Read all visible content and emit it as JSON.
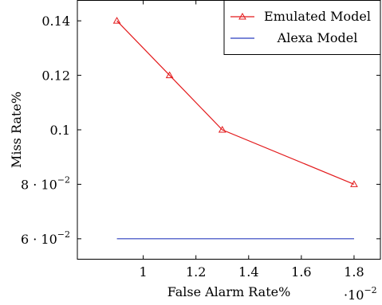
{
  "chart_data": {
    "type": "line",
    "xlabel": "False Alarm Rate%",
    "ylabel": "Miss Rate%",
    "x_exponent_label": "·10",
    "x_exponent_power": "−2",
    "xlim": [
      0.0075,
      0.019
    ],
    "ylim": [
      0.0525,
      0.1475
    ],
    "x_ticks": [
      {
        "value": 0.01,
        "label": "1"
      },
      {
        "value": 0.012,
        "label": "1.2"
      },
      {
        "value": 0.014,
        "label": "1.4"
      },
      {
        "value": 0.016,
        "label": "1.6"
      },
      {
        "value": 0.018,
        "label": "1.8"
      }
    ],
    "y_ticks": [
      {
        "value": 0.06,
        "mant": "6 · 10",
        "exp": "−2"
      },
      {
        "value": 0.08,
        "mant": "8 · 10",
        "exp": "−2"
      },
      {
        "value": 0.1,
        "mant": "0.1",
        "exp": ""
      },
      {
        "value": 0.12,
        "mant": "0.12",
        "exp": ""
      },
      {
        "value": 0.14,
        "mant": "0.14",
        "exp": ""
      }
    ],
    "series": [
      {
        "name": "Emulated Model",
        "color": "#e31a1c",
        "marker": "triangle",
        "x": [
          0.009,
          0.011,
          0.013,
          0.018
        ],
        "y": [
          0.14,
          0.12,
          0.1,
          0.08
        ]
      },
      {
        "name": "Alexa Model",
        "color": "#2b3fbf",
        "marker": "none",
        "x": [
          0.009,
          0.018
        ],
        "y": [
          0.06,
          0.06
        ]
      }
    ],
    "legend_position": "top-right",
    "grid": false
  }
}
